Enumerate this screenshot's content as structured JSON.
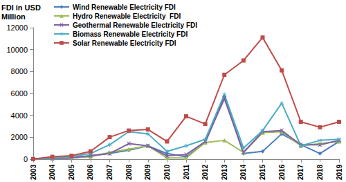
{
  "chart_data": {
    "type": "line",
    "y_label": "FDI in USD\nMillion",
    "categories": [
      "2003",
      "2004",
      "2005",
      "2006",
      "2007",
      "2008",
      "2009",
      "2010",
      "2011",
      "2012",
      "2013",
      "2014",
      "2015",
      "2016",
      "2017",
      "2018",
      "2019"
    ],
    "series": [
      {
        "name": "Wind Renewable Electricity FDI",
        "color": "#4a7ebb",
        "marker": "diamond",
        "values": [
          0,
          50,
          100,
          300,
          500,
          800,
          1200,
          500,
          200,
          1500,
          5700,
          500,
          700,
          2300,
          1300,
          500,
          1600
        ]
      },
      {
        "name": "Hydro Renewable Electricity  FDI",
        "color": "#9bbb59",
        "marker": "triangle",
        "values": [
          0,
          50,
          100,
          200,
          600,
          900,
          1200,
          100,
          100,
          1500,
          1700,
          600,
          2400,
          2500,
          1200,
          1400,
          1600
        ]
      },
      {
        "name": "Geothermal Renewable Electricity FDI",
        "color": "#7f5f9f",
        "marker": "x",
        "values": [
          0,
          50,
          100,
          300,
          500,
          1400,
          1200,
          300,
          400,
          1600,
          5500,
          600,
          2500,
          2600,
          1300,
          1300,
          1700
        ]
      },
      {
        "name": "Biomass Renewable Electricity FDI",
        "color": "#4bacc6",
        "marker": "star",
        "values": [
          0,
          100,
          200,
          500,
          1300,
          2500,
          2300,
          700,
          1200,
          1800,
          5900,
          1000,
          2600,
          5100,
          1200,
          1700,
          1800
        ]
      },
      {
        "name": "Solar Renewable Electricity FDI",
        "color": "#be4b48",
        "marker": "square",
        "values": [
          0,
          200,
          300,
          700,
          2000,
          2600,
          2700,
          1600,
          3900,
          3200,
          7700,
          9000,
          11100,
          8100,
          3400,
          2900,
          3400
        ]
      }
    ],
    "ylim": [
      0,
      12000
    ],
    "yticks": [
      0,
      2000,
      4000,
      6000,
      8000,
      10000,
      12000
    ],
    "grid": false,
    "legend": "top-left"
  }
}
